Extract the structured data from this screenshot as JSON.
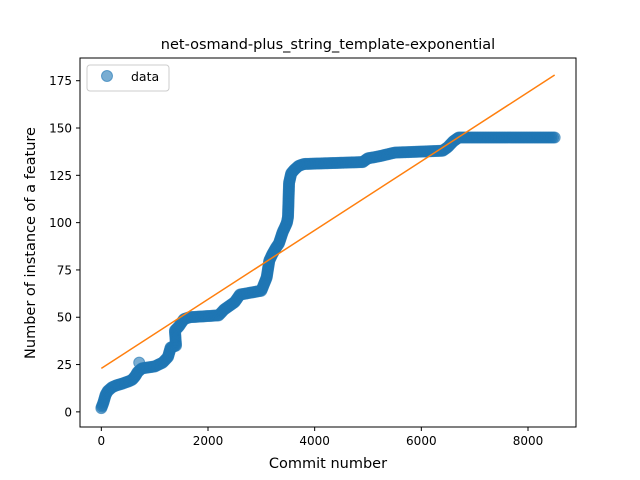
{
  "chart_data": {
    "type": "scatter",
    "title": "net-osmand-plus_string_template-exponential",
    "xlabel": "Commit number",
    "ylabel": "Number of instance of a feature",
    "xlim": [
      -400,
      8900
    ],
    "ylim": [
      -8,
      187
    ],
    "xticks": [
      0,
      2000,
      4000,
      6000,
      8000
    ],
    "yticks": [
      0,
      25,
      50,
      75,
      100,
      125,
      150,
      175
    ],
    "legend": {
      "position": "upper-left",
      "entries": [
        "data"
      ]
    },
    "colors": {
      "data": "#1f77b4",
      "fit": "#ff7f0e"
    },
    "series": [
      {
        "name": "data",
        "kind": "points",
        "steps": [
          [
            0,
            2
          ],
          [
            40,
            5
          ],
          [
            80,
            9
          ],
          [
            120,
            11
          ],
          [
            200,
            13
          ],
          [
            280,
            14
          ],
          [
            400,
            15
          ],
          [
            500,
            16
          ],
          [
            580,
            17
          ],
          [
            640,
            19
          ],
          [
            680,
            21
          ],
          [
            720,
            22
          ],
          [
            760,
            23
          ],
          [
            1000,
            24
          ],
          [
            1150,
            26
          ],
          [
            1250,
            29
          ],
          [
            1300,
            34
          ],
          [
            1400,
            35
          ],
          [
            1380,
            43
          ],
          [
            1450,
            45
          ],
          [
            1500,
            47
          ],
          [
            1550,
            49
          ],
          [
            1650,
            50
          ],
          [
            2200,
            51
          ],
          [
            2300,
            54
          ],
          [
            2400,
            56
          ],
          [
            2500,
            58
          ],
          [
            2600,
            62
          ],
          [
            3000,
            64
          ],
          [
            3100,
            71
          ],
          [
            3150,
            80
          ],
          [
            3200,
            83
          ],
          [
            3280,
            87
          ],
          [
            3330,
            89
          ],
          [
            3400,
            95
          ],
          [
            3450,
            98
          ],
          [
            3480,
            100
          ],
          [
            3500,
            103
          ],
          [
            3520,
            121
          ],
          [
            3560,
            126
          ],
          [
            3620,
            128
          ],
          [
            3700,
            130
          ],
          [
            3800,
            131
          ],
          [
            4900,
            132
          ],
          [
            5000,
            134
          ],
          [
            5200,
            135
          ],
          [
            5500,
            137
          ],
          [
            6400,
            138
          ],
          [
            6500,
            140
          ],
          [
            6600,
            143
          ],
          [
            6700,
            145
          ],
          [
            8500,
            145
          ]
        ],
        "outliers": [
          [
            710,
            26
          ]
        ]
      },
      {
        "name": "",
        "kind": "line",
        "points": [
          [
            0,
            23
          ],
          [
            8500,
            178
          ]
        ]
      }
    ]
  }
}
